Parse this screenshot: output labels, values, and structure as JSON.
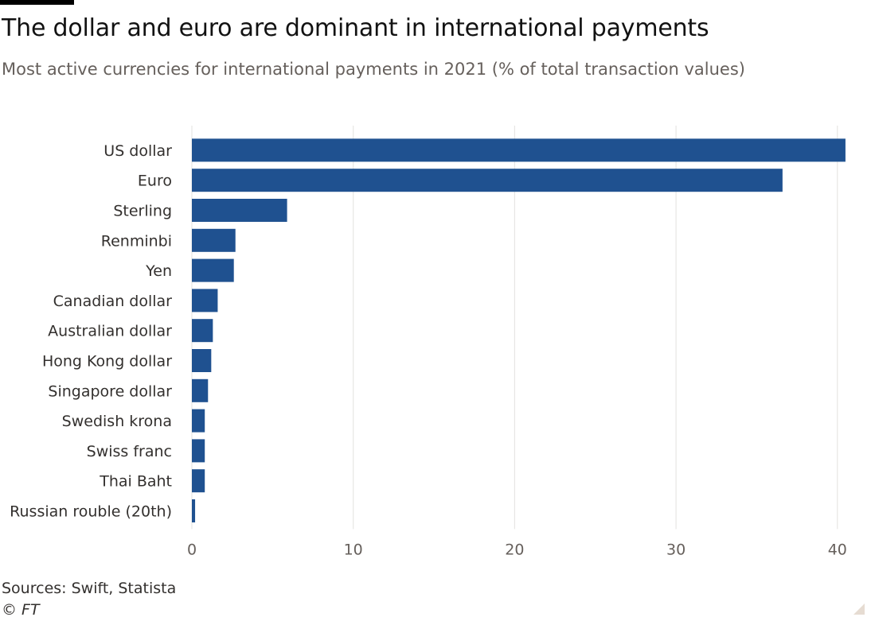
{
  "title": "The dollar and euro are dominant in international payments",
  "subtitle": "Most active currencies for international payments in 2021 (% of total transaction values)",
  "sources": "Sources: Swift, Statista",
  "credit": "© FT",
  "colors": {
    "bar": "#1f5190",
    "grid": "#e7e6e4",
    "axis_text": "#66605c",
    "label_text": "#33302e"
  },
  "chart_data": {
    "type": "bar",
    "orientation": "horizontal",
    "title": "The dollar and euro are dominant in international payments",
    "subtitle": "Most active currencies for international payments in 2021 (% of total transaction values)",
    "xlabel": "",
    "ylabel": "",
    "categories": [
      "US dollar",
      "Euro",
      "Sterling",
      "Renminbi",
      "Yen",
      "Canadian dollar",
      "Australian dollar",
      "Hong Kong dollar",
      "Singapore dollar",
      "Swedish krona",
      "Swiss franc",
      "Thai Baht",
      "Russian rouble (20th)"
    ],
    "values": [
      40.5,
      36.6,
      5.9,
      2.7,
      2.6,
      1.6,
      1.3,
      1.2,
      1.0,
      0.8,
      0.8,
      0.8,
      0.2
    ],
    "xlim": [
      0,
      40.8
    ],
    "xticks": [
      0,
      10,
      20,
      30,
      40
    ],
    "grid": true
  }
}
